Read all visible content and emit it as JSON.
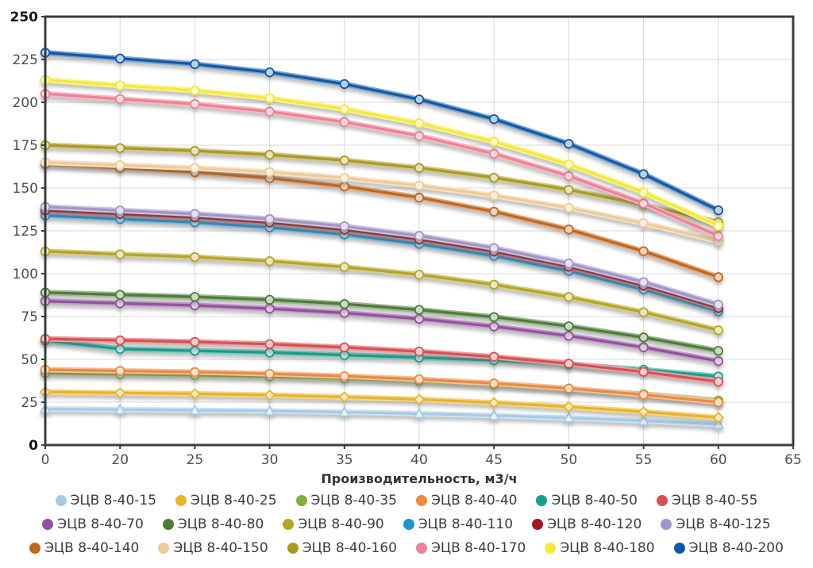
{
  "chart_data": {
    "type": "line",
    "title": "",
    "xlabel": "Производительность, м3/ч",
    "ylabel": "",
    "ylim": [
      0,
      250
    ],
    "y_ticks": [
      0,
      25,
      50,
      75,
      100,
      125,
      150,
      175,
      200,
      225,
      250
    ],
    "y_ticks_bold": [
      0,
      250
    ],
    "x_tick_labels": [
      "0",
      "20",
      "25",
      "30",
      "35",
      "40",
      "45",
      "50",
      "55",
      "60",
      "65"
    ],
    "categories": [
      0,
      20,
      25,
      30,
      35,
      40,
      45,
      50,
      55,
      60
    ],
    "grid": true,
    "legend_position": "bottom",
    "series": [
      {
        "name": "ЭЦВ 8-40-15",
        "color": "#a6cbe3",
        "marker": "triangle",
        "values": [
          21,
          20.7,
          20.3,
          19.9,
          19.2,
          18.3,
          17.2,
          15.8,
          14.1,
          12
        ]
      },
      {
        "name": "ЭЦВ 8-40-25",
        "color": "#e7b42b",
        "marker": "diamond",
        "values": [
          31,
          30.4,
          29.9,
          29.1,
          28.0,
          26.6,
          24.7,
          22.3,
          19.4,
          16
        ]
      },
      {
        "name": "ЭЦВ 8-40-35",
        "color": "#84ab3f",
        "marker": "circle",
        "values": [
          42,
          41.4,
          40.8,
          40.0,
          38.8,
          37.3,
          35.3,
          32.7,
          29.7,
          26
        ]
      },
      {
        "name": "ЭЦВ 8-40-40",
        "color": "#e98b43",
        "marker": "circle",
        "values": [
          44,
          43.3,
          42.6,
          41.6,
          40.2,
          38.4,
          36.0,
          33.0,
          29.4,
          25
        ]
      },
      {
        "name": "ЭЦВ 8-40-50",
        "color": "#169e8c",
        "marker": "circle",
        "values": [
          61,
          56,
          55,
          54,
          52.5,
          51,
          49.5,
          47,
          44,
          40
        ]
      },
      {
        "name": "ЭЦВ 8-40-55",
        "color": "#d85055",
        "marker": "circle",
        "values": [
          62,
          61.1,
          60.2,
          58.9,
          57.0,
          54.6,
          51.5,
          47.5,
          42.7,
          37
        ]
      },
      {
        "name": "ЭЦВ 8-40-70",
        "color": "#93519e",
        "marker": "circle",
        "values": [
          84,
          82.7,
          81.5,
          79.6,
          77.1,
          73.6,
          69.2,
          63.7,
          57.0,
          49
        ]
      },
      {
        "name": "ЭЦВ 8-40-80",
        "color": "#4f7b3a",
        "marker": "circle",
        "values": [
          89,
          87.7,
          86.5,
          84.8,
          82.3,
          78.9,
          74.7,
          69.3,
          62.8,
          55
        ]
      },
      {
        "name": "ЭЦВ 8-40-90",
        "color": "#b3a626",
        "marker": "circle",
        "values": [
          113,
          111.3,
          109.7,
          107.3,
          103.9,
          99.4,
          93.6,
          86.4,
          77.5,
          67
        ]
      },
      {
        "name": "ЭЦВ 8-40-110",
        "color": "#2191d0",
        "marker": "circle",
        "values": [
          134,
          131.9,
          130.0,
          127.0,
          122.9,
          117.4,
          110.4,
          101.6,
          90.8,
          78
        ]
      },
      {
        "name": "ЭЦВ 8-40-120",
        "color": "#9e1b22",
        "marker": "circle",
        "values": [
          137,
          134.9,
          132.9,
          129.9,
          125.7,
          120.1,
          113.0,
          104.1,
          93.1,
          80
        ]
      },
      {
        "name": "ЭЦВ 8-40-125",
        "color": "#a294c8",
        "marker": "circle",
        "values": [
          139,
          136.9,
          134.9,
          131.9,
          127.7,
          122.1,
          115.0,
          106.0,
          95.1,
          82
        ]
      },
      {
        "name": "ЭЦВ 8-40-140",
        "color": "#c3661c",
        "marker": "circle",
        "values": [
          164,
          161.6,
          159.2,
          155.8,
          150.9,
          144.4,
          136.2,
          125.8,
          113.1,
          98
        ]
      },
      {
        "name": "ЭЦВ 8-40-150",
        "color": "#eecb97",
        "marker": "circle",
        "values": [
          165,
          163.3,
          161.7,
          159.3,
          155.9,
          151.4,
          145.6,
          138.4,
          129.5,
          119
        ]
      },
      {
        "name": "ЭЦВ 8-40-160",
        "color": "#a89b22",
        "marker": "circle",
        "values": [
          175,
          173.3,
          171.7,
          169.4,
          166.1,
          161.7,
          156.0,
          149.0,
          140.3,
          130
        ]
      },
      {
        "name": "ЭЦВ 8-40-170",
        "color": "#ef8097",
        "marker": "circle",
        "values": [
          205,
          201.9,
          199.0,
          194.6,
          188.5,
          180.4,
          170.0,
          157.0,
          141.0,
          122
        ]
      },
      {
        "name": "ЭЦВ 8-40-180",
        "color": "#f2ea3b",
        "marker": "circle",
        "values": [
          213,
          209.9,
          206.9,
          202.4,
          196.1,
          187.8,
          177.1,
          163.8,
          147.5,
          128
        ]
      },
      {
        "name": "ЭЦВ 8-40-200",
        "color": "#1159a6",
        "marker": "circle",
        "values": [
          229,
          225.6,
          222.3,
          217.5,
          210.7,
          201.7,
          190.2,
          175.8,
          158.1,
          137
        ]
      }
    ]
  }
}
